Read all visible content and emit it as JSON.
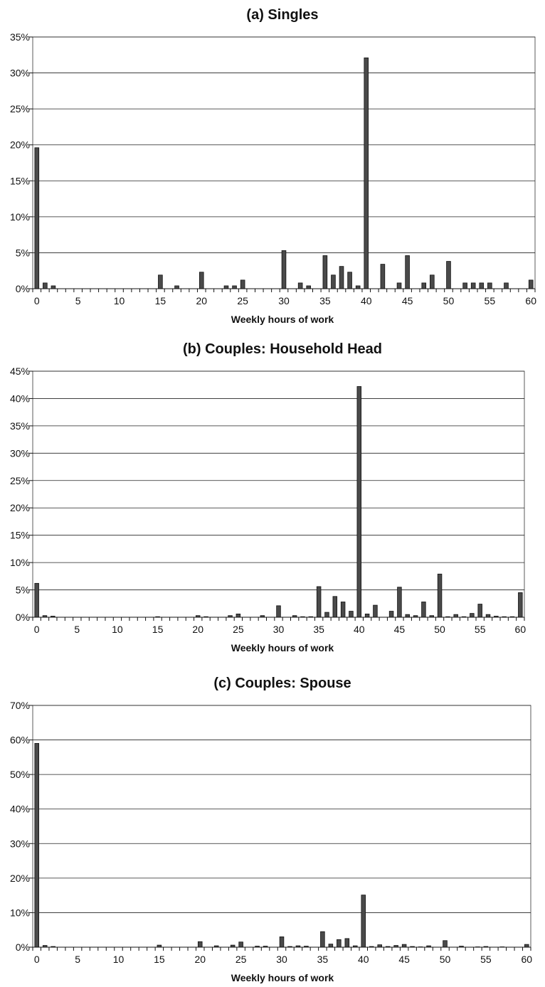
{
  "chart_data": [
    {
      "type": "bar",
      "title": "(a) Singles",
      "xlabel": "Weekly hours of work",
      "ylabel": "",
      "ylim": [
        0,
        35
      ],
      "yticks": [
        "0%",
        "5%",
        "10%",
        "15%",
        "20%",
        "25%",
        "30%",
        "35%"
      ],
      "xticks": [
        "0",
        "5",
        "10",
        "15",
        "20",
        "25",
        "30",
        "35",
        "40",
        "45",
        "50",
        "55",
        "60"
      ],
      "grid": true,
      "x": [
        0,
        1,
        2,
        3,
        4,
        5,
        6,
        7,
        8,
        9,
        10,
        11,
        12,
        13,
        14,
        15,
        16,
        17,
        18,
        19,
        20,
        21,
        22,
        23,
        24,
        25,
        26,
        27,
        28,
        29,
        30,
        31,
        32,
        33,
        34,
        35,
        36,
        37,
        38,
        39,
        40,
        41,
        42,
        43,
        44,
        45,
        46,
        47,
        48,
        49,
        50,
        51,
        52,
        53,
        54,
        55,
        56,
        57,
        58,
        59,
        60
      ],
      "values": [
        19.6,
        0.8,
        0.4,
        0,
        0,
        0,
        0,
        0,
        0,
        0,
        0,
        0,
        0,
        0,
        0,
        1.9,
        0,
        0.4,
        0,
        0,
        2.3,
        0,
        0,
        0.4,
        0.4,
        1.2,
        0,
        0,
        0,
        0,
        5.3,
        0,
        0.8,
        0.4,
        0,
        4.6,
        1.9,
        3.1,
        2.3,
        0.4,
        32.1,
        0,
        3.4,
        0,
        0.8,
        4.6,
        0,
        0.8,
        1.9,
        0,
        3.8,
        0,
        0.8,
        0.8,
        0.8,
        0.8,
        0,
        0.8,
        0,
        0,
        1.2
      ]
    },
    {
      "type": "bar",
      "title": "(b) Couples: Household Head",
      "xlabel": "Weekly hours of work",
      "ylabel": "",
      "ylim": [
        0,
        45
      ],
      "yticks": [
        "0%",
        "5%",
        "10%",
        "15%",
        "20%",
        "25%",
        "30%",
        "35%",
        "40%",
        "45%"
      ],
      "xticks": [
        "0",
        "5",
        "10",
        "15",
        "20",
        "25",
        "30",
        "35",
        "40",
        "45",
        "50",
        "55",
        "60"
      ],
      "grid": true,
      "x": [
        0,
        1,
        2,
        3,
        4,
        5,
        6,
        7,
        8,
        9,
        10,
        11,
        12,
        13,
        14,
        15,
        16,
        17,
        18,
        19,
        20,
        21,
        22,
        23,
        24,
        25,
        26,
        27,
        28,
        29,
        30,
        31,
        32,
        33,
        34,
        35,
        36,
        37,
        38,
        39,
        40,
        41,
        42,
        43,
        44,
        45,
        46,
        47,
        48,
        49,
        50,
        51,
        52,
        53,
        54,
        55,
        56,
        57,
        58,
        59,
        60
      ],
      "values": [
        6.2,
        0.3,
        0.2,
        0,
        0,
        0,
        0,
        0,
        0,
        0,
        0,
        0,
        0,
        0,
        0,
        0.1,
        0,
        0,
        0,
        0,
        0.3,
        0.1,
        0,
        0,
        0.3,
        0.6,
        0,
        0,
        0.3,
        0,
        2.1,
        0,
        0.3,
        0.1,
        0.1,
        5.6,
        0.9,
        3.8,
        2.8,
        1.1,
        42.2,
        0.6,
        2.2,
        0,
        1.1,
        5.5,
        0.5,
        0.3,
        2.8,
        0.3,
        7.9,
        0.1,
        0.5,
        0.1,
        0.7,
        2.4,
        0.5,
        0.2,
        0.1,
        0.1,
        4.5
      ]
    },
    {
      "type": "bar",
      "title": "(c) Couples: Spouse",
      "xlabel": "Weekly hours of work",
      "ylabel": "",
      "ylim": [
        0,
        70
      ],
      "yticks": [
        "0%",
        "10%",
        "20%",
        "30%",
        "40%",
        "50%",
        "60%",
        "70%"
      ],
      "xticks": [
        "0",
        "5",
        "10",
        "15",
        "20",
        "25",
        "30",
        "35",
        "40",
        "45",
        "50",
        "55",
        "60"
      ],
      "grid": true,
      "x": [
        0,
        1,
        2,
        3,
        4,
        5,
        6,
        7,
        8,
        9,
        10,
        11,
        12,
        13,
        14,
        15,
        16,
        17,
        18,
        19,
        20,
        21,
        22,
        23,
        24,
        25,
        26,
        27,
        28,
        29,
        30,
        31,
        32,
        33,
        34,
        35,
        36,
        37,
        38,
        39,
        40,
        41,
        42,
        43,
        44,
        45,
        46,
        47,
        48,
        49,
        50,
        51,
        52,
        53,
        54,
        55,
        56,
        57,
        58,
        59,
        60
      ],
      "values": [
        59.0,
        0.5,
        0.2,
        0,
        0,
        0,
        0,
        0,
        0,
        0,
        0,
        0,
        0,
        0,
        0,
        0.6,
        0,
        0,
        0,
        0,
        1.6,
        0,
        0.4,
        0,
        0.6,
        1.5,
        0,
        0.3,
        0.3,
        0,
        3.0,
        0.2,
        0.4,
        0.3,
        0,
        4.5,
        0.9,
        2.2,
        2.5,
        0.4,
        15.1,
        0.2,
        0.7,
        0.2,
        0.5,
        0.8,
        0.2,
        0.1,
        0.4,
        0,
        1.9,
        0,
        0.3,
        0,
        0.1,
        0.2,
        0,
        0.1,
        0,
        0,
        0.8
      ]
    }
  ]
}
